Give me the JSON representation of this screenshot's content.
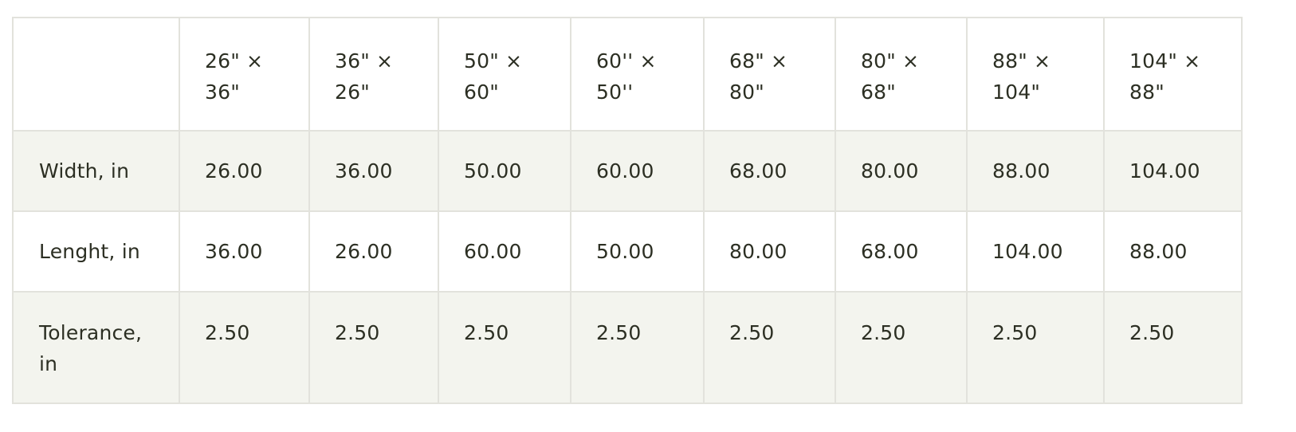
{
  "table": {
    "corner": "",
    "sizes": [
      {
        "line1": "26\" ×",
        "line2": "36\""
      },
      {
        "line1": "36\" ×",
        "line2": "26\""
      },
      {
        "line1": "50\" ×",
        "line2": "60\""
      },
      {
        "line1": "60'' ×",
        "line2": "50''"
      },
      {
        "line1": "68\" ×",
        "line2": "80\""
      },
      {
        "line1": "80\" ×",
        "line2": "68\""
      },
      {
        "line1": "88\" ×",
        "line2": "104\""
      },
      {
        "line1": "104\" ×",
        "line2": "88\""
      }
    ],
    "rows": [
      {
        "label": "Width, in",
        "values": [
          "26.00",
          "36.00",
          "50.00",
          "60.00",
          "68.00",
          "80.00",
          "88.00",
          "104.00"
        ]
      },
      {
        "label": "Lenght, in",
        "values": [
          "36.00",
          "26.00",
          "60.00",
          "50.00",
          "80.00",
          "68.00",
          "104.00",
          "88.00"
        ]
      },
      {
        "label_line1": "Tolerance,",
        "label_line2": "in",
        "values": [
          "2.50",
          "2.50",
          "2.50",
          "2.50",
          "2.50",
          "2.50",
          "2.50",
          "2.50"
        ]
      }
    ]
  },
  "colors": {
    "text": "#2c2f23",
    "stripe": "#f3f4ee",
    "border": "#e2e2dc"
  }
}
